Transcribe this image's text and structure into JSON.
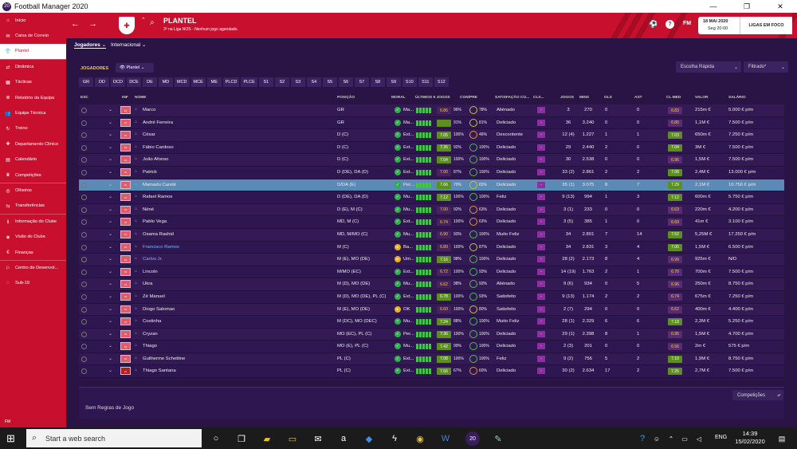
{
  "app_title": "Football Manager 2020",
  "sidebar": {
    "items": [
      "Início",
      "Caixa de Correio",
      "Plantel",
      "Dinâmica",
      "Tácticas",
      "Relatório da Equipa",
      "Equipa Técnica",
      "Treino",
      "Departamento Clínico",
      "Calendário",
      "Competições",
      "Olheiros",
      "Transferências",
      "Informação do Clube",
      "Visão do Clube",
      "Finanças",
      "Centro de Desenvol...",
      "Sub-19"
    ],
    "mail_badge": "2",
    "version": "FM"
  },
  "header": {
    "title": "PLANTEL",
    "subtitle": "3º na Liga NOS - Nenhum jogo agendado.",
    "date": "18 MAI 2020",
    "day_time": "Seg 20:00",
    "focus_button": "LIGAS EM FOCO",
    "fm_label": "FM"
  },
  "subnav": {
    "tab1": "Jogadores",
    "tab2": "Internacional"
  },
  "toolbar": {
    "jogadores_label": "JOGADORES",
    "plantel": "Plantel",
    "quick": "Escolha Rápida",
    "filter": "Filtrado*"
  },
  "position_tabs": [
    "GR",
    "DD",
    "DCD",
    "DCE",
    "DE",
    "MD",
    "MCD",
    "MCE",
    "ME",
    "PLCD",
    "PLCE",
    "S1",
    "S2",
    "S3",
    "S4",
    "S5",
    "S6",
    "S7",
    "S8",
    "S9",
    "S10",
    "S11",
    "S12"
  ],
  "columns": {
    "esc": "ESC",
    "inf": "INF",
    "nome": "NOME",
    "posicao": "POSIÇÃO",
    "moral": "MORAL",
    "ultimos": "ÚLTIMOS 5 JOGOS",
    "con": "CON/PRE",
    "satisfacao": "SATISFAÇÃO CO...",
    "cls": "CLS...",
    "jogos": "JOGOS",
    "mins": "MINS",
    "gls": "GLS",
    "ast": "AST",
    "clmed": "CL MED",
    "valor": "VALOR",
    "salario": "SALÁRIO"
  },
  "players": [
    {
      "name": "Marco",
      "pos": "GR",
      "moral": "Ma...",
      "rating": "6.86",
      "cond": "96%",
      "pre": "78%",
      "sat": "Aliénado",
      "jogos": "3",
      "mins": "270",
      "gls": "0",
      "ast": "0",
      "cl": "6.83",
      "valor": "215m €",
      "salario": "5.000 € p/m"
    },
    {
      "name": "André Ferreira",
      "pos": "GR",
      "moral": "Ma...",
      "rating": "",
      "cond": "91%",
      "pre": "81%",
      "sat": "Deliciado",
      "jogos": "36",
      "mins": "3.240",
      "gls": "0",
      "ast": "0",
      "cl": "6.86",
      "valor": "1,1M €",
      "salario": "7.500 € p/m"
    },
    {
      "name": "César",
      "pos": "D (C)",
      "moral": "Ext...",
      "rating": "7.05",
      "cond": "100%",
      "pre": "46%",
      "sat": "Descontente",
      "jogos": "12 (4)",
      "mins": "1.227",
      "gls": "1",
      "ast": "1",
      "cl": "7.03",
      "valor": "650m €",
      "salario": "7.250 € p/m"
    },
    {
      "name": "Fábio Cardoso",
      "pos": "D (C)",
      "moral": "Ext...",
      "rating": "7.35",
      "cond": "92%",
      "pre": "100%",
      "sat": "Deliciado",
      "jogos": "29",
      "mins": "2.440",
      "gls": "2",
      "ast": "0",
      "cl": "7.04",
      "valor": "3M €",
      "salario": "7.500 € p/m"
    },
    {
      "name": "João Afonso",
      "pos": "D (C)",
      "moral": "Ext...",
      "rating": "7.04",
      "cond": "100%",
      "pre": "100%",
      "sat": "Deliciado",
      "jogos": "30",
      "mins": "2.538",
      "gls": "0",
      "ast": "0",
      "cl": "6.96",
      "valor": "1,5M €",
      "salario": "7.500 € p/m"
    },
    {
      "name": "Patrick",
      "pos": "D (DE), DA (D)",
      "moral": "Ext...",
      "rating": "7.00",
      "cond": "87%",
      "pre": "100%",
      "sat": "Deliciado",
      "jogos": "33 (2)",
      "mins": "2.861",
      "gls": "2",
      "ast": "2",
      "cl": "7.08",
      "valor": "2,4M €",
      "salario": "13.000 € p/m"
    },
    {
      "name": "Mamadu Candé",
      "pos": "D/DA (E)",
      "moral": "Per...",
      "rating": "7.66",
      "cond": "70%",
      "pre": "83%",
      "sat": "Deliciado",
      "jogos": "35 (1)",
      "mins": "3.075",
      "gls": "8",
      "ast": "7",
      "cl": "7.29",
      "valor": "2,1M €",
      "salario": "10.750 € p/m"
    },
    {
      "name": "Rafael Ramos",
      "pos": "D (DE), DA (D)",
      "moral": "Mu...",
      "rating": "7.12",
      "cond": "100%",
      "pre": "100%",
      "sat": "Feliz",
      "jogos": "9 (13)",
      "mins": "994",
      "gls": "1",
      "ast": "3",
      "cl": "7.12",
      "valor": "600m €",
      "salario": "5.750 € p/m"
    },
    {
      "name": "Néné",
      "pos": "D (E), M (C)",
      "moral": "Mu...",
      "rating": "7.00",
      "cond": "92%",
      "pre": "63%",
      "sat": "Deliciado",
      "jogos": "3 (1)",
      "mins": "233",
      "gls": "0",
      "ast": "0",
      "cl": "6.63",
      "valor": "220m €",
      "salario": "4.200 € p/m"
    },
    {
      "name": "Pablo Vega",
      "pos": "MD, M (C)",
      "moral": "Ext...",
      "rating": "6.74",
      "cond": "100%",
      "pre": "63%",
      "sat": "Deliciado",
      "jogos": "3 (5)",
      "mins": "385",
      "gls": "1",
      "ast": "0",
      "cl": "6.69",
      "valor": "41m €",
      "salario": "3.100 € p/m"
    },
    {
      "name": "Osama Rashid",
      "pos": "MD, M/MO (C)",
      "moral": "Mu...",
      "rating": "6.90",
      "cond": "93%",
      "pre": "100%",
      "sat": "Muito Feliz",
      "jogos": "34",
      "mins": "2.801",
      "gls": "7",
      "ast": "14",
      "cl": "7.52",
      "valor": "5,25M €",
      "salario": "17.250 € p/m"
    },
    {
      "name": "Francisco Ramos",
      "pos": "M (C)",
      "moral": "Ba...",
      "rating": "6.80",
      "cond": "100%",
      "pre": "87%",
      "sat": "Deliciado",
      "jogos": "34",
      "mins": "2.831",
      "gls": "3",
      "ast": "4",
      "cl": "7.06",
      "valor": "1,5M €",
      "salario": "6.500 € p/m"
    },
    {
      "name": "Carlos Jr.",
      "pos": "M (E), MO (DE)",
      "moral": "Um...",
      "rating": "7.16",
      "cond": "98%",
      "pre": "100%",
      "sat": "Deliciado",
      "jogos": "28 (2)",
      "mins": "2.173",
      "gls": "8",
      "ast": "4",
      "cl": "6.99",
      "valor": "925m €",
      "salario": "N/D"
    },
    {
      "name": "Lincoln",
      "pos": "M/MO (EC)",
      "moral": "Ext...",
      "rating": "6.72",
      "cond": "100%",
      "pre": "93%",
      "sat": "Deliciado",
      "jogos": "14 (19)",
      "mins": "1.763",
      "gls": "2",
      "ast": "1",
      "cl": "6.76",
      "valor": "700m €",
      "salario": "7.500 € p/m"
    },
    {
      "name": "Ukra",
      "pos": "M (D), MO (DE)",
      "moral": "Mu...",
      "rating": "6.62",
      "cond": "98%",
      "pre": "93%",
      "sat": "Aliénado",
      "jogos": "9 (6)",
      "mins": "934",
      "gls": "0",
      "ast": "5",
      "cl": "6.96",
      "valor": "250m €",
      "salario": "8.750 € p/m"
    },
    {
      "name": "Zé Manuel",
      "pos": "M (D), MO (DE), PL (C)",
      "moral": "Ext...",
      "rating": "6.78",
      "cond": "100%",
      "pre": "93%",
      "sat": "Satisfeito",
      "jogos": "9 (13)",
      "mins": "1.174",
      "gls": "2",
      "ast": "2",
      "cl": "6.74",
      "valor": "675m €",
      "salario": "7.250 € p/m"
    },
    {
      "name": "Diogo Salomao",
      "pos": "M (E), MO (DE)",
      "moral": "OK",
      "rating": "6.60",
      "cond": "100%",
      "pre": "80%",
      "sat": "Satisfeito",
      "jogos": "2 (7)",
      "mins": "294",
      "gls": "0",
      "ast": "0",
      "cl": "6.62",
      "valor": "400m €",
      "salario": "4.400 € p/m"
    },
    {
      "name": "Costinha",
      "pos": "M (DC), MO (DEC)",
      "moral": "Mu...",
      "rating": "7.24",
      "cond": "88%",
      "pre": "100%",
      "sat": "Muito Feliz",
      "jogos": "28 (1)",
      "mins": "2.329",
      "gls": "6",
      "ast": "6",
      "cl": "7.18",
      "valor": "2,3M €",
      "salario": "5.250 € p/m"
    },
    {
      "name": "Cryzan",
      "pos": "MO (EC), PL (C)",
      "moral": "Per...",
      "rating": "7.36",
      "cond": "100%",
      "pre": "100%",
      "sat": "Deliciado",
      "jogos": "29 (1)",
      "mins": "2.398",
      "gls": "8",
      "ast": "1",
      "cl": "6.95",
      "valor": "1,5M €",
      "salario": "4.700 € p/m"
    },
    {
      "name": "Thiago",
      "pos": "MO (E), PL (C)",
      "moral": "Mu...",
      "rating": "7.42",
      "cond": "99%",
      "pre": "100%",
      "sat": "Deliciado",
      "jogos": "2 (3)",
      "mins": "201",
      "gls": "0",
      "ast": "0",
      "cl": "6.56",
      "valor": "2m €",
      "salario": "575 € p/m"
    },
    {
      "name": "Guilherme Schettine",
      "pos": "PL (C)",
      "moral": "Ext...",
      "rating": "7.08",
      "cond": "100%",
      "pre": "100%",
      "sat": "Feliz",
      "jogos": "9 (2)",
      "mins": "756",
      "gls": "5",
      "ast": "2",
      "cl": "7.10",
      "valor": "1,9M €",
      "salario": "8.750 € p/m"
    },
    {
      "name": "Thiago Santana",
      "pos": "PL (C)",
      "moral": "Ext...",
      "rating": "7.66",
      "cond": "67%",
      "pre": "60%",
      "sat": "Deliciado",
      "jogos": "30 (2)",
      "mins": "2.634",
      "gls": "17",
      "ast": "2",
      "cl": "7.25",
      "valor": "2,7M €",
      "salario": "7.500 € p/m"
    }
  ],
  "rules": {
    "competitions": "Competições",
    "no_rules": "Sem Regras de Jogo"
  },
  "taskbar": {
    "search_placeholder": "Start a web search",
    "time": "14:39",
    "date": "15/02/2020",
    "lang": "ENG"
  },
  "colors": {
    "primary": "#c8102e",
    "background": "#2a1446",
    "rating_good": "#5c8f20"
  }
}
